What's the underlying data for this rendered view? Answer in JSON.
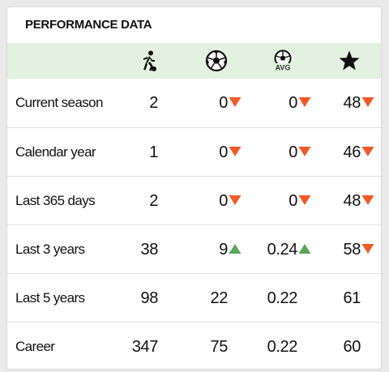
{
  "title": "PERFORMANCE DATA",
  "colors": {
    "up": "#5aa55a",
    "down": "#f05a28",
    "header_bg": "#e3f1e0"
  },
  "columns": [
    {
      "icon": "player-running-icon"
    },
    {
      "icon": "football-icon"
    },
    {
      "icon": "football-avg-icon",
      "badge": "AVG"
    },
    {
      "icon": "star-icon"
    }
  ],
  "rows": [
    {
      "label": "Current season",
      "values": [
        "2",
        "0",
        "0",
        "48"
      ],
      "trends": [
        "",
        "down",
        "down",
        "down"
      ]
    },
    {
      "label": "Calendar year",
      "values": [
        "1",
        "0",
        "0",
        "46"
      ],
      "trends": [
        "",
        "down",
        "down",
        "down"
      ]
    },
    {
      "label": "Last 365 days",
      "values": [
        "2",
        "0",
        "0",
        "48"
      ],
      "trends": [
        "",
        "down",
        "down",
        "down"
      ]
    },
    {
      "label": "Last 3 years",
      "values": [
        "38",
        "9",
        "0.24",
        "58"
      ],
      "trends": [
        "",
        "up",
        "up",
        "down"
      ]
    },
    {
      "label": "Last 5 years",
      "values": [
        "98",
        "22",
        "0.22",
        "61"
      ],
      "trends": [
        "",
        "",
        "",
        ""
      ]
    },
    {
      "label": "Career",
      "values": [
        "347",
        "75",
        "0.22",
        "60"
      ],
      "trends": [
        "",
        "",
        "",
        ""
      ]
    }
  ]
}
